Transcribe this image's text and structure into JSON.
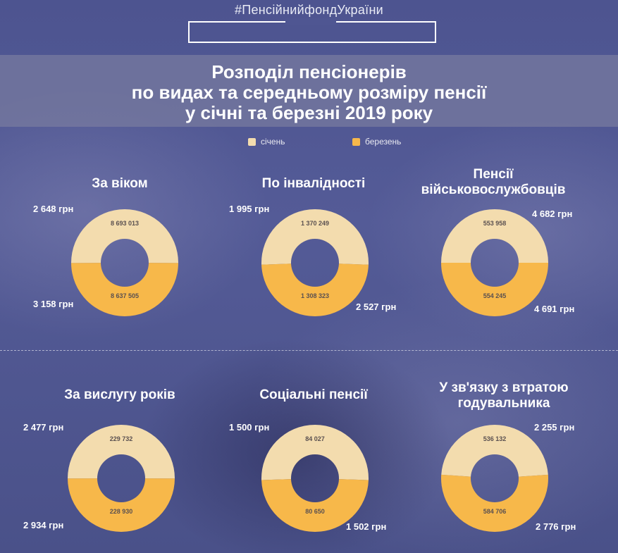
{
  "header": {
    "hashtag": "#ПенсійнийфондУкраїни",
    "title_lines": [
      "Розподіл пенсіонерів",
      "по видах та середньому розміру пенсії",
      "у січні та березні 2019 року"
    ]
  },
  "legend": {
    "items": [
      {
        "label": "січень",
        "color": "#f3dcae"
      },
      {
        "label": "березень",
        "color": "#f7b84a"
      }
    ]
  },
  "colors": {
    "january": "#f3dcae",
    "march": "#f7b84a"
  },
  "chart_data": [
    {
      "type": "pie",
      "title": "За віком",
      "series": [
        {
          "name": "січень",
          "value": 8693013
        },
        {
          "name": "березень",
          "value": 8637505
        }
      ],
      "value_labels": [
        "8 693 013",
        "8 637 505"
      ],
      "amount_labels": [
        "2 648 грн",
        "3 158 грн"
      ]
    },
    {
      "type": "pie",
      "title": "По інвалідності",
      "series": [
        {
          "name": "січень",
          "value": 1370249
        },
        {
          "name": "березень",
          "value": 1308323
        }
      ],
      "value_labels": [
        "1 370 249",
        "1 308 323"
      ],
      "amount_labels": [
        "1 995 грн",
        "2 527 грн"
      ]
    },
    {
      "type": "pie",
      "title": "Пенсії військовослужбовців",
      "series": [
        {
          "name": "січень",
          "value": 553958
        },
        {
          "name": "березень",
          "value": 554245
        }
      ],
      "value_labels": [
        "553 958",
        "554 245"
      ],
      "amount_labels": [
        "4 682 грн",
        "4 691 грн"
      ]
    },
    {
      "type": "pie",
      "title": "За вислугу років",
      "series": [
        {
          "name": "січень",
          "value": 229732
        },
        {
          "name": "березень",
          "value": 228930
        }
      ],
      "value_labels": [
        "229 732",
        "228 930"
      ],
      "amount_labels": [
        "2 477 грн",
        "2 934 грн"
      ]
    },
    {
      "type": "pie",
      "title": "Соціальні пенсії",
      "series": [
        {
          "name": "січень",
          "value": 84027
        },
        {
          "name": "березень",
          "value": 80650
        }
      ],
      "value_labels": [
        "84 027",
        "80 650"
      ],
      "amount_labels": [
        "1 500 грн",
        "1 502 грн"
      ]
    },
    {
      "type": "pie",
      "title": "У зв'язку з втратою годувальника",
      "series": [
        {
          "name": "січень",
          "value": 536132
        },
        {
          "name": "березень",
          "value": 584706
        }
      ],
      "value_labels": [
        "536 132",
        "584 706"
      ],
      "amount_labels": [
        "2 255 грн",
        "2 776 грн"
      ]
    }
  ]
}
